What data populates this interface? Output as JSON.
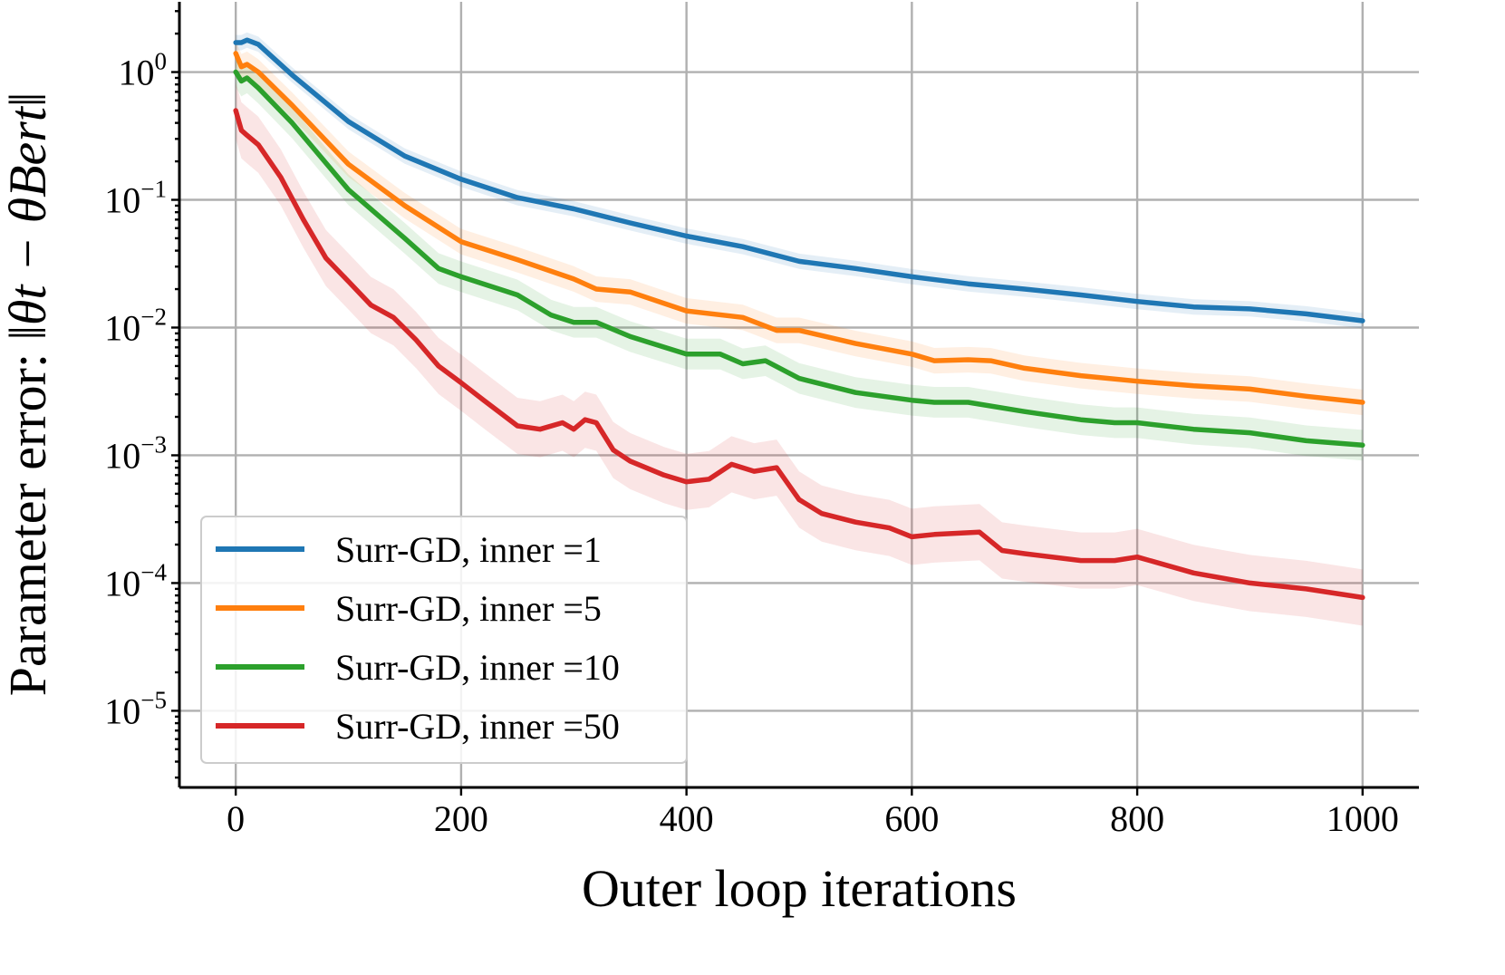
{
  "chart_data": {
    "type": "line",
    "xlabel": "Outer loop iterations",
    "ylabel": "Parameter error: ",
    "ylabel_math": "‖θt − θBert‖",
    "yscale": "log",
    "xlim": [
      -50,
      1050
    ],
    "ylim_exponent": [
      -5.6,
      0.55
    ],
    "grid": true,
    "legend_position": "lower-left",
    "x_ticks": [
      0,
      200,
      400,
      600,
      800,
      1000
    ],
    "x_tick_labels": [
      "0",
      "200",
      "400",
      "600",
      "800",
      "1000"
    ],
    "y_ticks": [
      {
        "exp": 0,
        "base": "10",
        "power": "0"
      },
      {
        "exp": -1,
        "base": "10",
        "power": "−1"
      },
      {
        "exp": -2,
        "base": "10",
        "power": "−2"
      },
      {
        "exp": -3,
        "base": "10",
        "power": "−3"
      },
      {
        "exp": -4,
        "base": "10",
        "power": "−4"
      },
      {
        "exp": -5,
        "base": "10",
        "power": "−5"
      }
    ],
    "series": [
      {
        "name": "Surr-GD, inner =1",
        "color": "#1f77b4",
        "x": [
          0,
          5,
          10,
          20,
          50,
          100,
          150,
          200,
          250,
          300,
          350,
          400,
          450,
          500,
          550,
          600,
          650,
          700,
          750,
          800,
          850,
          900,
          950,
          1000
        ],
        "y": [
          1.7,
          1.7,
          1.78,
          1.65,
          0.95,
          0.41,
          0.22,
          0.145,
          0.104,
          0.085,
          0.066,
          0.052,
          0.043,
          0.033,
          0.029,
          0.025,
          0.022,
          0.02,
          0.018,
          0.016,
          0.0145,
          0.014,
          0.0128,
          0.0113
        ]
      },
      {
        "name": "Surr-GD, inner =5",
        "color": "#ff7f0e",
        "x": [
          0,
          5,
          10,
          20,
          50,
          100,
          150,
          200,
          250,
          300,
          320,
          350,
          400,
          450,
          480,
          500,
          550,
          600,
          620,
          650,
          670,
          700,
          750,
          800,
          850,
          900,
          950,
          1000
        ],
        "y": [
          1.4,
          1.1,
          1.15,
          1.0,
          0.55,
          0.19,
          0.09,
          0.047,
          0.034,
          0.024,
          0.02,
          0.019,
          0.0135,
          0.012,
          0.0095,
          0.0095,
          0.0075,
          0.0062,
          0.0055,
          0.0056,
          0.0055,
          0.0048,
          0.0042,
          0.0038,
          0.0035,
          0.0033,
          0.0029,
          0.0026
        ]
      },
      {
        "name": "Surr-GD, inner =10",
        "color": "#2ca02c",
        "x": [
          0,
          5,
          10,
          20,
          50,
          100,
          150,
          180,
          200,
          250,
          280,
          300,
          320,
          350,
          400,
          430,
          450,
          470,
          500,
          550,
          600,
          620,
          650,
          700,
          750,
          780,
          800,
          850,
          900,
          950,
          1000
        ],
        "y": [
          1.0,
          0.85,
          0.9,
          0.75,
          0.4,
          0.12,
          0.05,
          0.029,
          0.025,
          0.018,
          0.0125,
          0.011,
          0.011,
          0.0085,
          0.0062,
          0.0062,
          0.0052,
          0.0055,
          0.004,
          0.0031,
          0.0027,
          0.0026,
          0.0026,
          0.0022,
          0.0019,
          0.0018,
          0.0018,
          0.0016,
          0.0015,
          0.0013,
          0.0012
        ]
      },
      {
        "name": "Surr-GD, inner =50",
        "color": "#d62728",
        "x": [
          0,
          5,
          10,
          20,
          40,
          60,
          80,
          100,
          120,
          140,
          160,
          180,
          200,
          220,
          250,
          270,
          290,
          300,
          310,
          320,
          335,
          350,
          380,
          400,
          420,
          440,
          460,
          480,
          500,
          520,
          550,
          580,
          600,
          620,
          660,
          680,
          700,
          750,
          780,
          800,
          850,
          900,
          950,
          1000
        ],
        "y": [
          0.5,
          0.35,
          0.32,
          0.27,
          0.15,
          0.07,
          0.035,
          0.023,
          0.015,
          0.012,
          0.008,
          0.005,
          0.0037,
          0.0027,
          0.0017,
          0.0016,
          0.0018,
          0.0016,
          0.0019,
          0.0018,
          0.0011,
          0.0009,
          0.0007,
          0.00062,
          0.00065,
          0.00085,
          0.00075,
          0.0008,
          0.00045,
          0.00035,
          0.0003,
          0.00027,
          0.00023,
          0.00024,
          0.00025,
          0.00018,
          0.00017,
          0.00015,
          0.00015,
          0.00016,
          0.00012,
          0.0001,
          9e-05,
          7.7e-05
        ]
      }
    ]
  }
}
